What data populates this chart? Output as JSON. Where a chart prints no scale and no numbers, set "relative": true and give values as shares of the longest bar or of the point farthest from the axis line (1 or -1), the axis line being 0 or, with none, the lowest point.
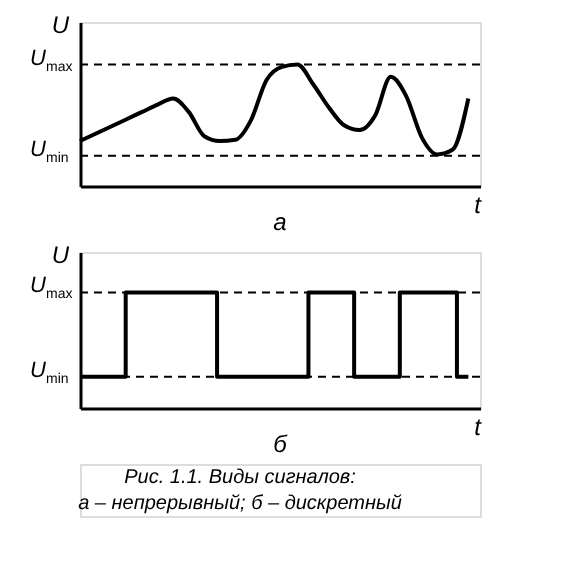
{
  "chart_data": [
    {
      "type": "line",
      "relative": true,
      "title": "а",
      "xlabel": "t",
      "ylabel": "U",
      "line_style": "solid",
      "marker": "none",
      "grid": false,
      "categories": [
        null,
        null,
        null,
        null,
        null,
        null,
        null,
        null,
        null,
        null,
        null,
        null,
        null,
        null,
        null,
        null,
        null,
        null,
        null,
        null,
        null,
        null,
        null,
        null,
        null,
        null
      ],
      "series": [
        {
          "color": "#000000",
          "values": [
            0.37,
            0.43,
            0.49,
            0.55,
            0.61,
            0.67,
            0.72,
            0.61,
            0.41,
            0.37,
            0.38,
            0.54,
            0.87,
            0.98,
            1.0,
            0.84,
            0.65,
            0.5,
            0.46,
            0.58,
            0.9,
            0.74,
            0.4,
            0.26,
            0.3,
            0.72
          ]
        }
      ],
      "ref_lines": [
        {
          "axis": "y",
          "value": 1.0,
          "label": "U$_{max}$",
          "line_style": "dashed",
          "color": "#000000"
        },
        {
          "axis": "y",
          "value": 0.25,
          "label": "U$_{min}$",
          "line_style": "dashed",
          "color": "#000000"
        }
      ]
    },
    {
      "type": "step",
      "relative": true,
      "title": "б",
      "xlabel": "t",
      "ylabel": "U",
      "line_style": "solid",
      "marker": "none",
      "grid": false,
      "categories": [
        null,
        null,
        null,
        null,
        null,
        null,
        null,
        null,
        null,
        null,
        null,
        null,
        null,
        null,
        null,
        null,
        null,
        null,
        null,
        null,
        null,
        null,
        null,
        null,
        null,
        null,
        null,
        null,
        null,
        null,
        null,
        null,
        null,
        null,
        null
      ],
      "series": [
        {
          "color": "#000000",
          "values": [
            0.27,
            0.27,
            0.27,
            0.27,
            1,
            1,
            1,
            1,
            1,
            1,
            1,
            1,
            0.27,
            0.27,
            0.27,
            0.27,
            0.27,
            0.27,
            0.27,
            0.27,
            1,
            1,
            1,
            1,
            0.27,
            0.27,
            0.27,
            0.27,
            1,
            1,
            1,
            1,
            1,
            0.27,
            0.27
          ]
        }
      ],
      "ref_lines": [
        {
          "axis": "y",
          "value": 1.0,
          "label": "U$_{max}$",
          "line_style": "dashed",
          "color": "#000000"
        },
        {
          "axis": "y",
          "value": 0.27,
          "label": "U$_{min}$",
          "line_style": "dashed",
          "color": "#000000"
        }
      ],
      "annotations": [
        "Рис. 1.1. Виды сигналов:",
        "а – непрерывный; б – дискретный"
      ]
    }
  ]
}
